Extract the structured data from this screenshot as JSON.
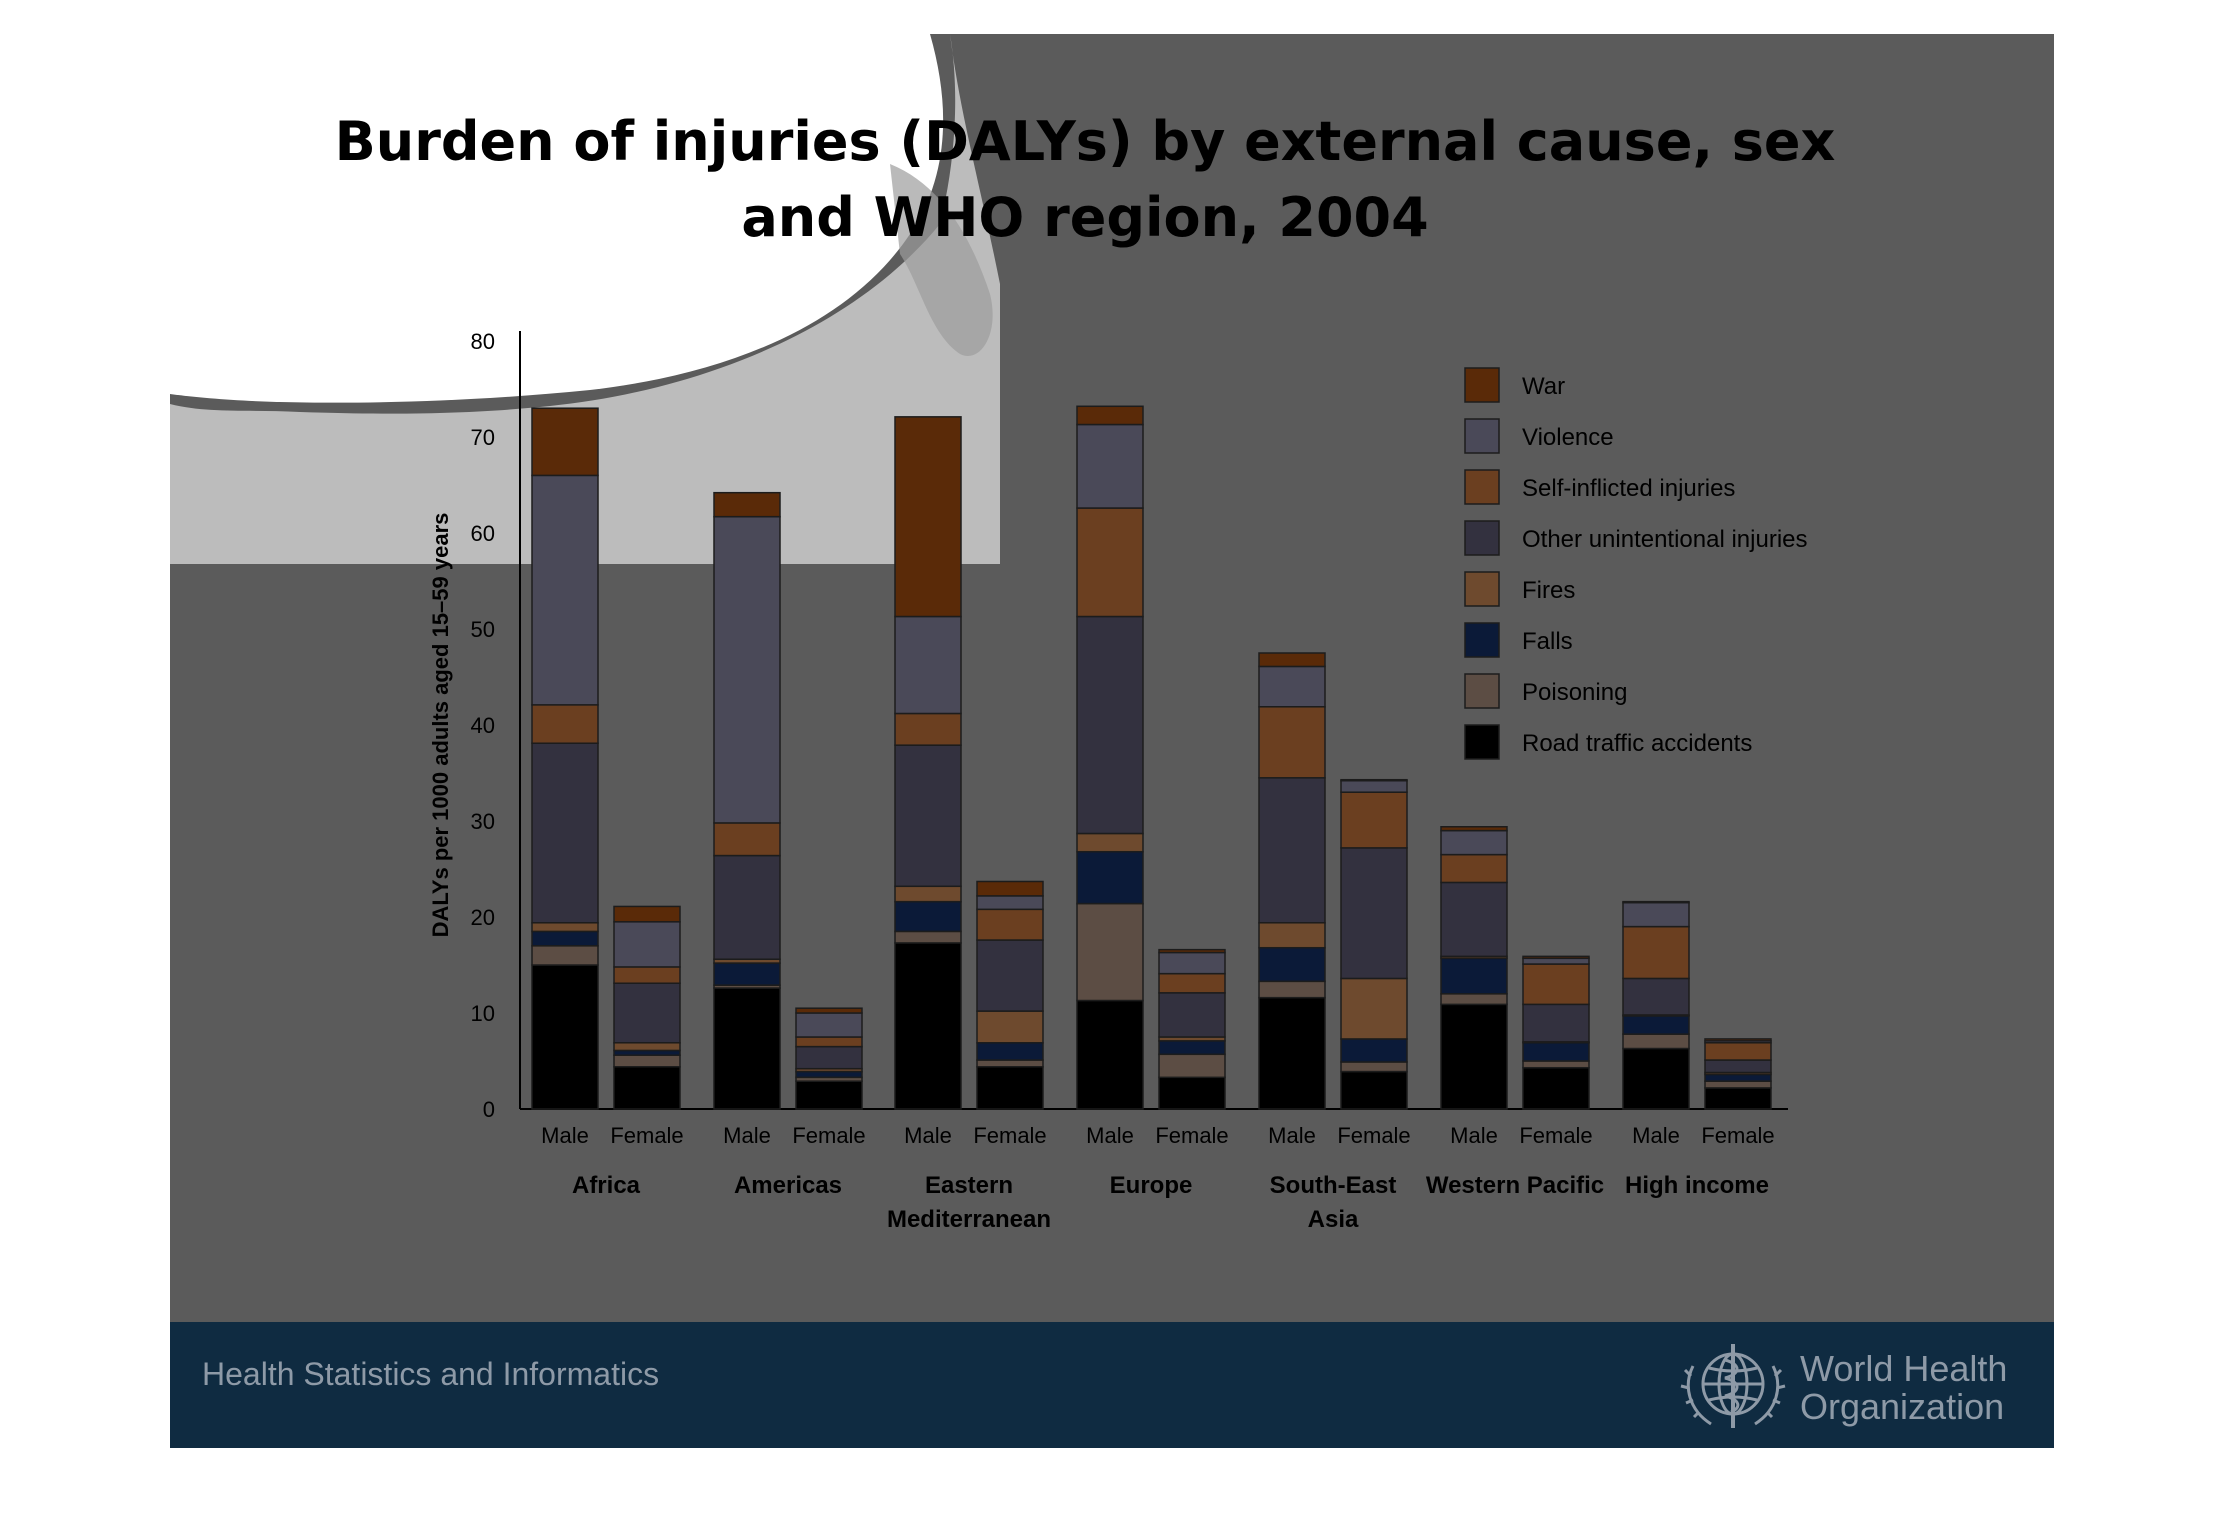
{
  "slide": {
    "title_line1": "Burden of injuries (DALYs) by external cause, sex",
    "title_line2": "and WHO region, 2004",
    "footer_text": "Health Statistics and Informatics",
    "org_name_line1": "World Health",
    "org_name_line2": "Organization"
  },
  "colors": {
    "slide_bg": "#5b5b5b",
    "footer_bg": "#0f2b41",
    "footer_text": "#8e9aa7"
  },
  "chart_data": {
    "type": "bar",
    "stacked": true,
    "title": "Burden of injuries (DALYs) by external cause, sex and WHO region, 2004",
    "ylabel": "DALYs per 1000 adults aged 15–59 years",
    "ylim": [
      0,
      80
    ],
    "yticks": [
      0,
      10,
      20,
      30,
      40,
      50,
      60,
      70,
      80
    ],
    "legend_position": "top-right",
    "regions": [
      "Africa",
      "Americas",
      "Eastern Mediterranean",
      "Europe",
      "South-East Asia",
      "Western Pacific",
      "High income"
    ],
    "region_label_lines": [
      [
        "Africa"
      ],
      [
        "Americas"
      ],
      [
        "Eastern",
        "Mediterranean"
      ],
      [
        "Europe"
      ],
      [
        "South-East",
        "Asia"
      ],
      [
        "Western Pacific"
      ],
      [
        "High income"
      ]
    ],
    "sexes": [
      "Male",
      "Female"
    ],
    "categories": [
      "Africa Male",
      "Africa Female",
      "Americas Male",
      "Americas Female",
      "Eastern Mediterranean Male",
      "Eastern Mediterranean Female",
      "Europe Male",
      "Europe Female",
      "South-East Asia Male",
      "South-East Asia Female",
      "Western Pacific Male",
      "Western Pacific Female",
      "High income Male",
      "High income Female"
    ],
    "series": [
      {
        "name": "Road traffic accidents",
        "color": "#000000",
        "values": [
          15.0,
          4.4,
          12.6,
          2.9,
          17.3,
          4.4,
          11.3,
          3.3,
          11.6,
          3.9,
          10.9,
          4.3,
          6.3,
          2.2
        ]
      },
      {
        "name": "Poisoning",
        "color": "#5c4d44",
        "values": [
          2.0,
          1.2,
          0.3,
          0.4,
          1.2,
          0.7,
          10.1,
          2.4,
          1.7,
          1.0,
          1.1,
          0.7,
          1.5,
          0.7
        ]
      },
      {
        "name": "Falls",
        "color": "#0b1a38",
        "values": [
          1.5,
          0.5,
          2.3,
          0.6,
          3.1,
          1.8,
          5.4,
          1.4,
          3.5,
          2.4,
          3.7,
          1.9,
          1.9,
          0.7
        ]
      },
      {
        "name": "Fires",
        "color": "#6e4a2e",
        "values": [
          0.9,
          0.8,
          0.4,
          0.3,
          1.6,
          3.3,
          1.9,
          0.4,
          2.6,
          6.3,
          0.2,
          0.1,
          0.1,
          0.2
        ]
      },
      {
        "name": "Other unintentional injuries",
        "color": "#33313f",
        "values": [
          18.7,
          6.2,
          10.8,
          2.3,
          14.7,
          7.4,
          22.6,
          4.6,
          15.1,
          13.6,
          7.7,
          3.9,
          3.8,
          1.3
        ]
      },
      {
        "name": "Self-inflicted injuries",
        "color": "#6b3f20",
        "values": [
          4.0,
          1.7,
          3.4,
          1.0,
          3.3,
          3.2,
          11.3,
          2.0,
          7.4,
          5.8,
          2.9,
          4.2,
          5.4,
          1.8
        ]
      },
      {
        "name": "Violence",
        "color": "#4a4958",
        "values": [
          23.9,
          4.7,
          31.9,
          2.5,
          10.1,
          1.4,
          8.7,
          2.2,
          4.2,
          1.2,
          2.5,
          0.6,
          2.5,
          0.2
        ]
      },
      {
        "name": "War",
        "color": "#5a2a08",
        "values": [
          7.0,
          1.6,
          2.5,
          0.5,
          20.8,
          1.5,
          1.9,
          0.3,
          1.4,
          0.1,
          0.4,
          0.2,
          0.1,
          0.2
        ]
      }
    ]
  }
}
